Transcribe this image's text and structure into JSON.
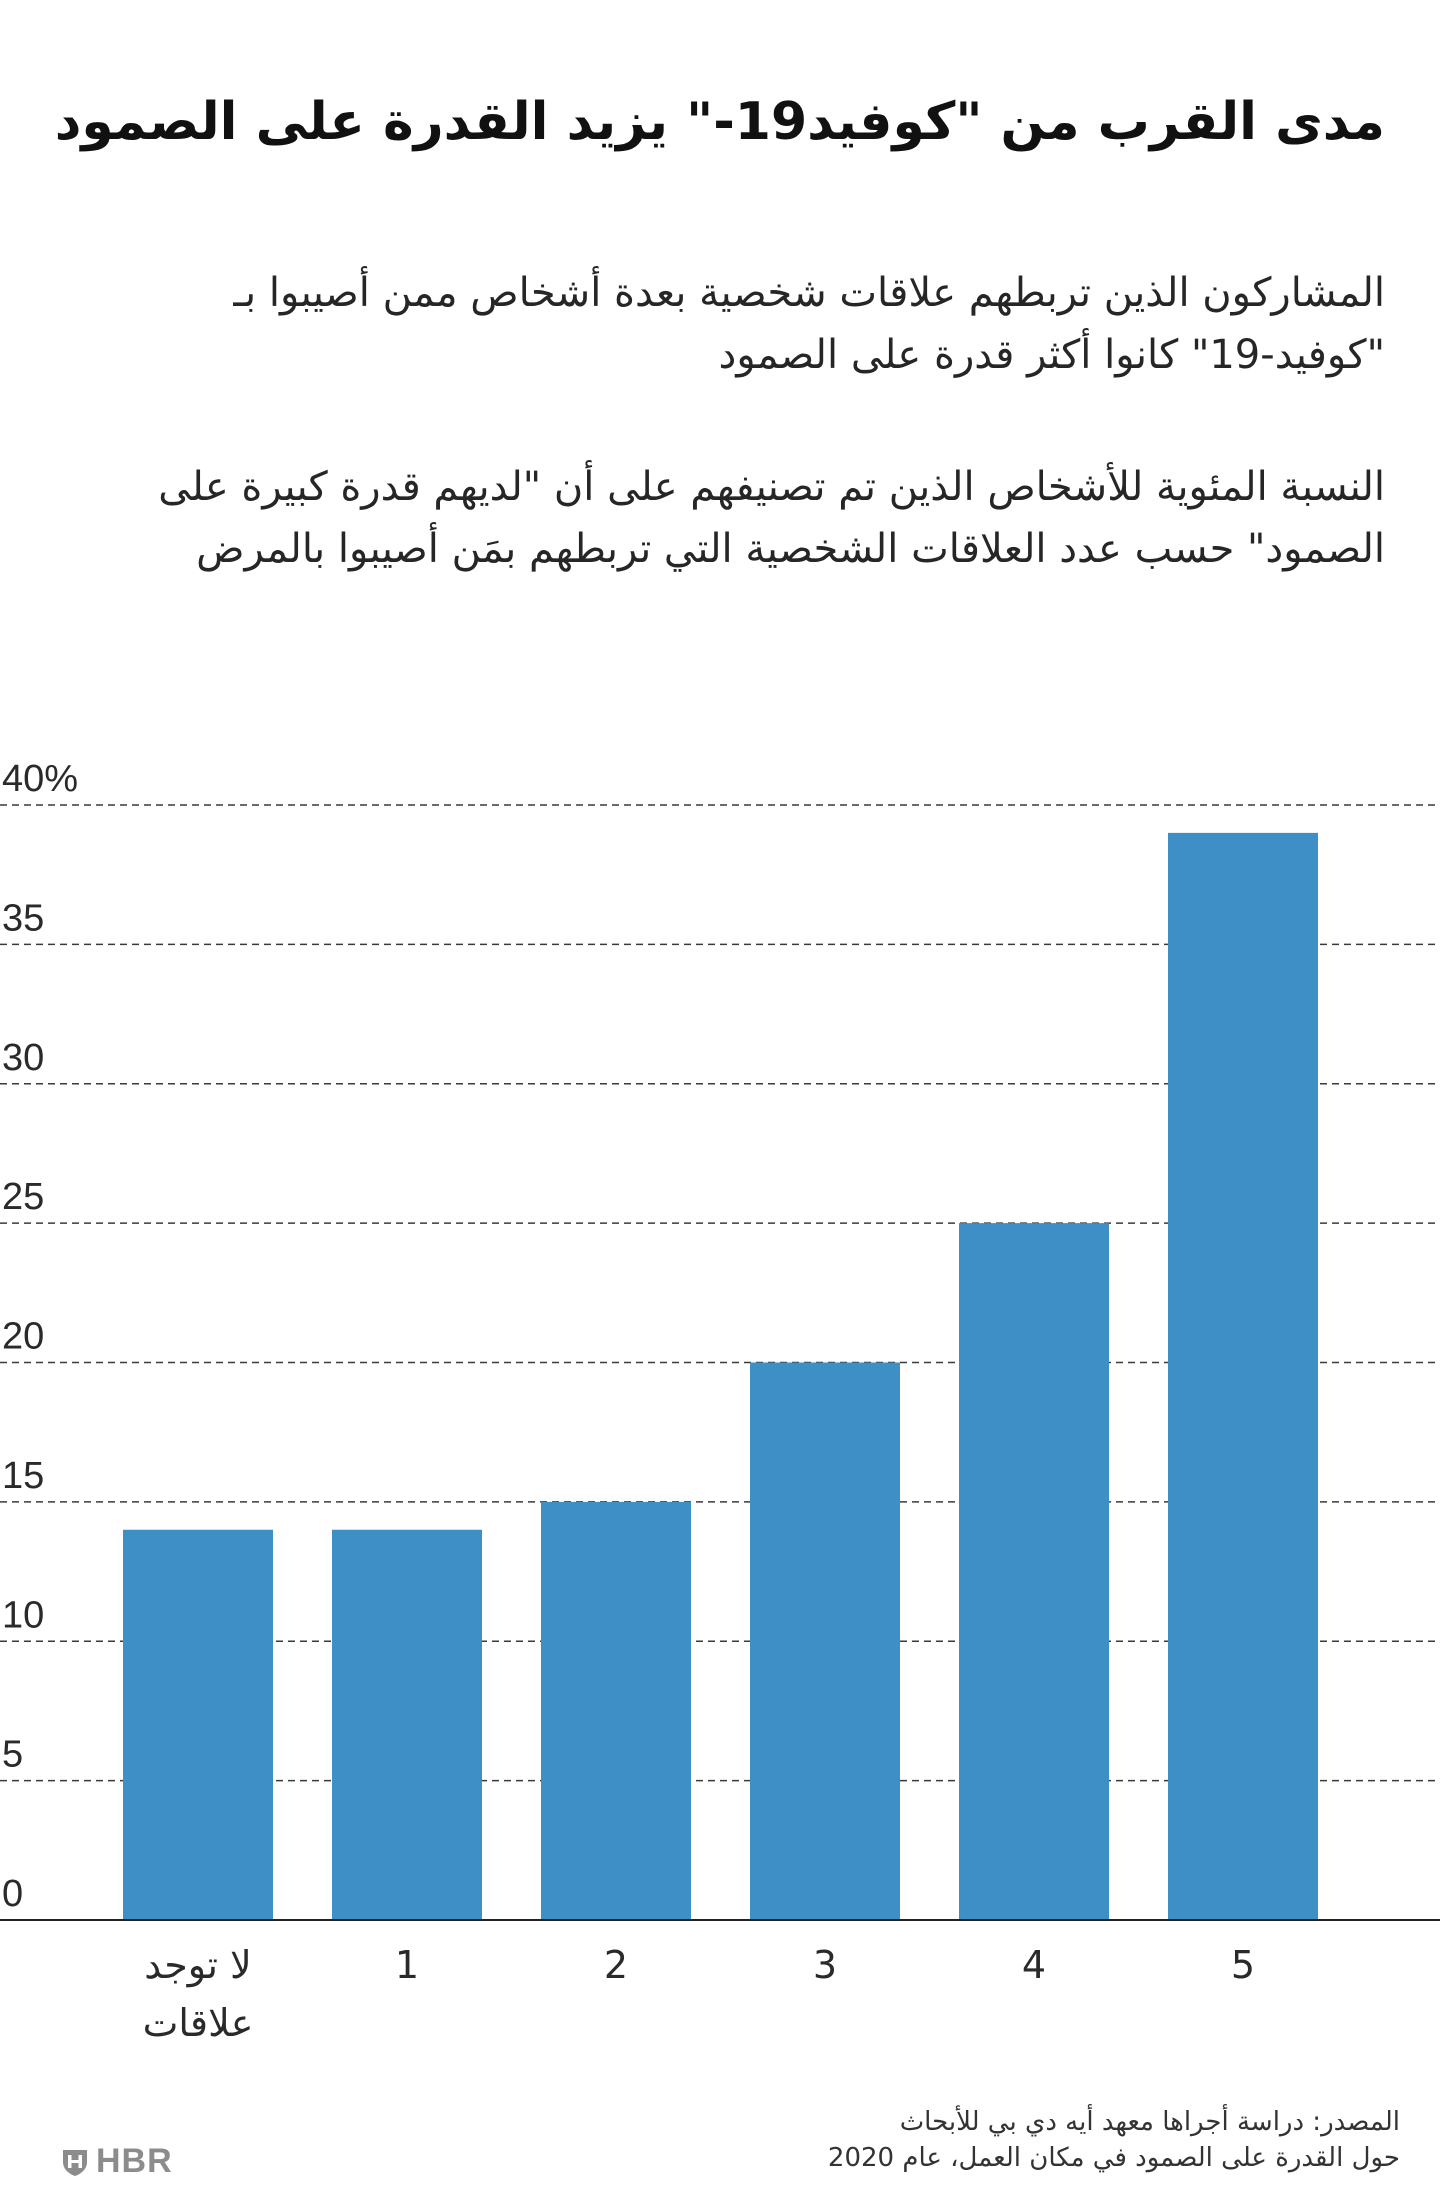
{
  "header": {
    "title": "مدى القرب من \"كوفيد19-\" يزيد القدرة على الصمود",
    "subtitle": "المشاركون الذين تربطهم علاقات شخصية بعدة أشخاص ممن أصيبوا بـ \"كوفيد-19\" كانوا أكثر قدرة على الصمود",
    "description": "النسبة المئوية للأشخاص الذين تم تصنيفهم على أن \"لديهم قدرة كبيرة على الصمود\" حسب عدد العلاقات الشخصية التي تربطهم بمَن أصيبوا بالمرض"
  },
  "chart_data": {
    "type": "bar",
    "categories": [
      "لا توجد علاقات",
      "1",
      "2",
      "3",
      "4",
      "5"
    ],
    "values": [
      14,
      14,
      15,
      20,
      25,
      39
    ],
    "ylim": [
      0,
      40
    ],
    "yticks": [
      "0",
      "5",
      "10",
      "15",
      "20",
      "25",
      "30",
      "35",
      "40%"
    ],
    "grid": true,
    "bar_color": "#3d8fc6",
    "title": "",
    "xlabel": "",
    "ylabel": ""
  },
  "footer": {
    "source_line1": "المصدر: دراسة أجراها معهد أيه دي بي للأبحاث",
    "source_line2": "حول القدرة على الصمود في مكان العمل، عام 2020",
    "logo_text": "HBR",
    "logo_icon": "hbr-shield-icon"
  }
}
